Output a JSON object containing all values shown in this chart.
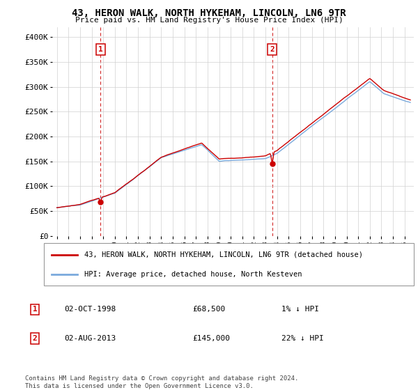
{
  "title": "43, HERON WALK, NORTH HYKEHAM, LINCOLN, LN6 9TR",
  "subtitle": "Price paid vs. HM Land Registry's House Price Index (HPI)",
  "legend_line1": "43, HERON WALK, NORTH HYKEHAM, LINCOLN, LN6 9TR (detached house)",
  "legend_line2": "HPI: Average price, detached house, North Kesteven",
  "annotation1_label": "1",
  "annotation1_date": "02-OCT-1998",
  "annotation1_price": "£68,500",
  "annotation1_hpi": "1% ↓ HPI",
  "annotation2_label": "2",
  "annotation2_date": "02-AUG-2013",
  "annotation2_price": "£145,000",
  "annotation2_hpi": "22% ↓ HPI",
  "footer": "Contains HM Land Registry data © Crown copyright and database right 2024.\nThis data is licensed under the Open Government Licence v3.0.",
  "sale1_x": 1998.75,
  "sale1_y": 68500,
  "sale2_x": 2013.58,
  "sale2_y": 145000,
  "ylim": [
    0,
    420000
  ],
  "yticks": [
    0,
    50000,
    100000,
    150000,
    200000,
    250000,
    300000,
    350000,
    400000
  ],
  "ytick_labels": [
    "£0",
    "£50K",
    "£100K",
    "£150K",
    "£200K",
    "£250K",
    "£300K",
    "£350K",
    "£400K"
  ],
  "background_color": "#ffffff",
  "grid_color": "#d0d0d0",
  "red_line_color": "#cc0000",
  "blue_line_color": "#7aaadd",
  "vline_color": "#cc0000",
  "dot_color": "#cc0000",
  "annotation_box_color": "#cc0000",
  "xlim_start": 1994.6,
  "xlim_end": 2025.8,
  "xtick_start": 1995,
  "xtick_end": 2026
}
